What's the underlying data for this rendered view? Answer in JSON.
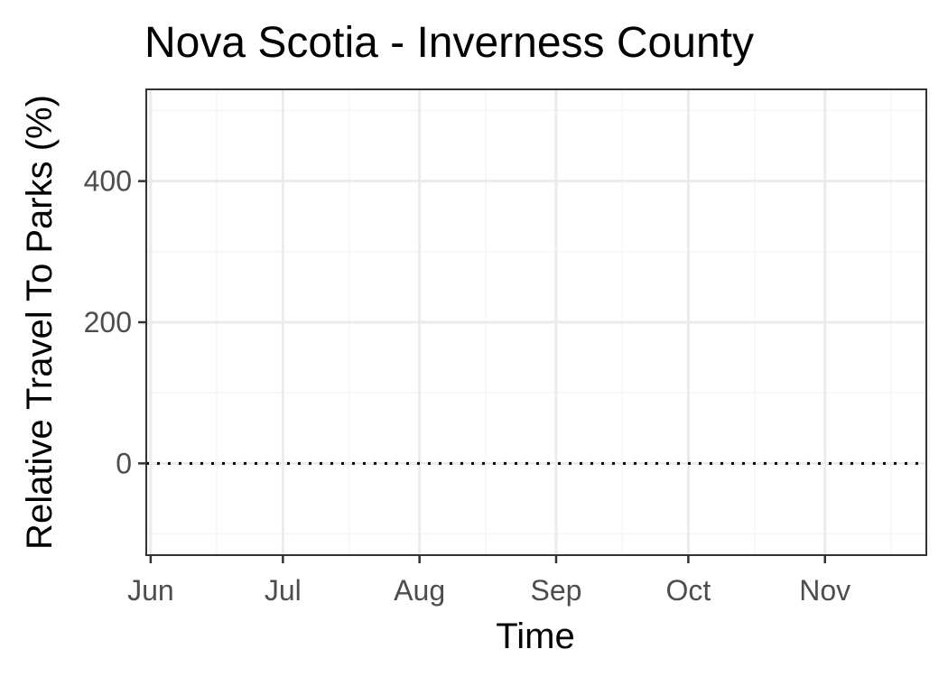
{
  "chart_data": {
    "type": "line",
    "title": "Nova Scotia - Inverness County",
    "xlabel": "Time",
    "ylabel": "Relative Travel To Parks (%)",
    "x_tick_labels": [
      "Jun",
      "Jul",
      "Aug",
      "Sep",
      "Oct",
      "Nov"
    ],
    "x_ticks": [
      "2020-06-01",
      "2020-07-01",
      "2020-08-01",
      "2020-09-01",
      "2020-10-01",
      "2020-11-01"
    ],
    "x_minor_ticks": [
      "2020-06-16",
      "2020-07-16",
      "2020-08-16",
      "2020-09-16",
      "2020-10-16",
      "2020-11-16"
    ],
    "xlim": [
      "2020-05-31",
      "2020-11-24"
    ],
    "y_ticks": [
      0,
      200,
      400
    ],
    "y_minor_ticks": [
      -100,
      100,
      300,
      500
    ],
    "ylim": [
      -130,
      530
    ],
    "reference_line": {
      "y": 0,
      "style": "dotted",
      "color": "#000000"
    },
    "series": [],
    "grid": true,
    "colors": {
      "panel_border": "#333333",
      "grid_major": "#ebebeb",
      "grid_minor": "#f5f5f5",
      "tick_label": "#4d4d4d",
      "text": "#000000"
    }
  }
}
